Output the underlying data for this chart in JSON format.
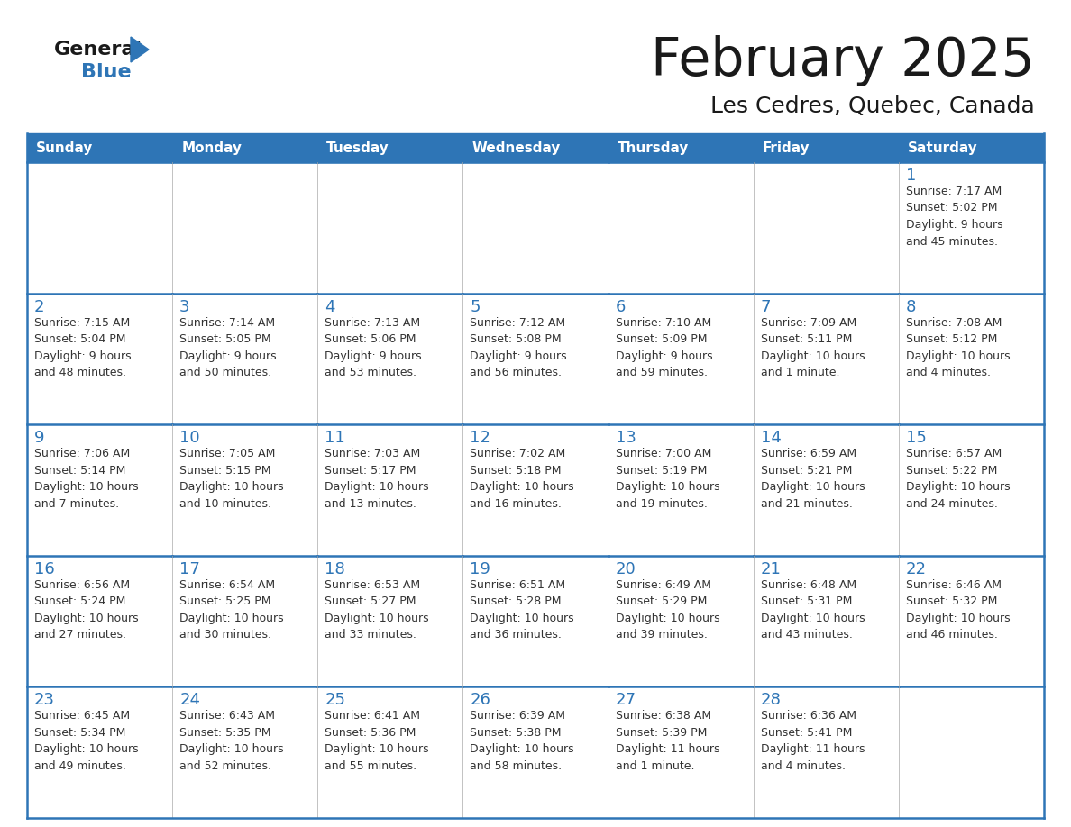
{
  "title": "February 2025",
  "subtitle": "Les Cedres, Quebec, Canada",
  "days_of_week": [
    "Sunday",
    "Monday",
    "Tuesday",
    "Wednesday",
    "Thursday",
    "Friday",
    "Saturday"
  ],
  "header_bg": "#2E75B6",
  "header_text": "#FFFFFF",
  "cell_bg": "#FFFFFF",
  "cell_empty_bg": "#F0F0F0",
  "cell_border": "#2E75B6",
  "cell_border_light": "#AAAAAA",
  "day_num_color": "#2E75B6",
  "info_color": "#333333",
  "title_color": "#1a1a1a",
  "logo_general_color": "#1a1a1a",
  "logo_blue_color": "#2E75B6",
  "calendar_data": [
    [
      null,
      null,
      null,
      null,
      null,
      null,
      {
        "day": 1,
        "sunrise": "7:17 AM",
        "sunset": "5:02 PM",
        "daylight": "9 hours",
        "daylight2": "and 45 minutes."
      }
    ],
    [
      {
        "day": 2,
        "sunrise": "7:15 AM",
        "sunset": "5:04 PM",
        "daylight": "9 hours",
        "daylight2": "and 48 minutes."
      },
      {
        "day": 3,
        "sunrise": "7:14 AM",
        "sunset": "5:05 PM",
        "daylight": "9 hours",
        "daylight2": "and 50 minutes."
      },
      {
        "day": 4,
        "sunrise": "7:13 AM",
        "sunset": "5:06 PM",
        "daylight": "9 hours",
        "daylight2": "and 53 minutes."
      },
      {
        "day": 5,
        "sunrise": "7:12 AM",
        "sunset": "5:08 PM",
        "daylight": "9 hours",
        "daylight2": "and 56 minutes."
      },
      {
        "day": 6,
        "sunrise": "7:10 AM",
        "sunset": "5:09 PM",
        "daylight": "9 hours",
        "daylight2": "and 59 minutes."
      },
      {
        "day": 7,
        "sunrise": "7:09 AM",
        "sunset": "5:11 PM",
        "daylight": "10 hours",
        "daylight2": "and 1 minute."
      },
      {
        "day": 8,
        "sunrise": "7:08 AM",
        "sunset": "5:12 PM",
        "daylight": "10 hours",
        "daylight2": "and 4 minutes."
      }
    ],
    [
      {
        "day": 9,
        "sunrise": "7:06 AM",
        "sunset": "5:14 PM",
        "daylight": "10 hours",
        "daylight2": "and 7 minutes."
      },
      {
        "day": 10,
        "sunrise": "7:05 AM",
        "sunset": "5:15 PM",
        "daylight": "10 hours",
        "daylight2": "and 10 minutes."
      },
      {
        "day": 11,
        "sunrise": "7:03 AM",
        "sunset": "5:17 PM",
        "daylight": "10 hours",
        "daylight2": "and 13 minutes."
      },
      {
        "day": 12,
        "sunrise": "7:02 AM",
        "sunset": "5:18 PM",
        "daylight": "10 hours",
        "daylight2": "and 16 minutes."
      },
      {
        "day": 13,
        "sunrise": "7:00 AM",
        "sunset": "5:19 PM",
        "daylight": "10 hours",
        "daylight2": "and 19 minutes."
      },
      {
        "day": 14,
        "sunrise": "6:59 AM",
        "sunset": "5:21 PM",
        "daylight": "10 hours",
        "daylight2": "and 21 minutes."
      },
      {
        "day": 15,
        "sunrise": "6:57 AM",
        "sunset": "5:22 PM",
        "daylight": "10 hours",
        "daylight2": "and 24 minutes."
      }
    ],
    [
      {
        "day": 16,
        "sunrise": "6:56 AM",
        "sunset": "5:24 PM",
        "daylight": "10 hours",
        "daylight2": "and 27 minutes."
      },
      {
        "day": 17,
        "sunrise": "6:54 AM",
        "sunset": "5:25 PM",
        "daylight": "10 hours",
        "daylight2": "and 30 minutes."
      },
      {
        "day": 18,
        "sunrise": "6:53 AM",
        "sunset": "5:27 PM",
        "daylight": "10 hours",
        "daylight2": "and 33 minutes."
      },
      {
        "day": 19,
        "sunrise": "6:51 AM",
        "sunset": "5:28 PM",
        "daylight": "10 hours",
        "daylight2": "and 36 minutes."
      },
      {
        "day": 20,
        "sunrise": "6:49 AM",
        "sunset": "5:29 PM",
        "daylight": "10 hours",
        "daylight2": "and 39 minutes."
      },
      {
        "day": 21,
        "sunrise": "6:48 AM",
        "sunset": "5:31 PM",
        "daylight": "10 hours",
        "daylight2": "and 43 minutes."
      },
      {
        "day": 22,
        "sunrise": "6:46 AM",
        "sunset": "5:32 PM",
        "daylight": "10 hours",
        "daylight2": "and 46 minutes."
      }
    ],
    [
      {
        "day": 23,
        "sunrise": "6:45 AM",
        "sunset": "5:34 PM",
        "daylight": "10 hours",
        "daylight2": "and 49 minutes."
      },
      {
        "day": 24,
        "sunrise": "6:43 AM",
        "sunset": "5:35 PM",
        "daylight": "10 hours",
        "daylight2": "and 52 minutes."
      },
      {
        "day": 25,
        "sunrise": "6:41 AM",
        "sunset": "5:36 PM",
        "daylight": "10 hours",
        "daylight2": "and 55 minutes."
      },
      {
        "day": 26,
        "sunrise": "6:39 AM",
        "sunset": "5:38 PM",
        "daylight": "10 hours",
        "daylight2": "and 58 minutes."
      },
      {
        "day": 27,
        "sunrise": "6:38 AM",
        "sunset": "5:39 PM",
        "daylight": "11 hours",
        "daylight2": "and 1 minute."
      },
      {
        "day": 28,
        "sunrise": "6:36 AM",
        "sunset": "5:41 PM",
        "daylight": "11 hours",
        "daylight2": "and 4 minutes."
      },
      null
    ]
  ],
  "num_rows": 5,
  "num_cols": 7
}
